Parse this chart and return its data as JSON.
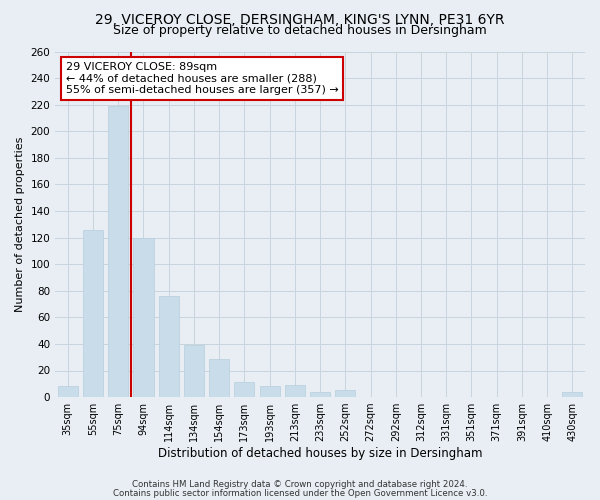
{
  "title1": "29, VICEROY CLOSE, DERSINGHAM, KING'S LYNN, PE31 6YR",
  "title2": "Size of property relative to detached houses in Dersingham",
  "xlabel": "Distribution of detached houses by size in Dersingham",
  "ylabel": "Number of detached properties",
  "categories": [
    "35sqm",
    "55sqm",
    "75sqm",
    "94sqm",
    "114sqm",
    "134sqm",
    "154sqm",
    "173sqm",
    "193sqm",
    "213sqm",
    "233sqm",
    "252sqm",
    "272sqm",
    "292sqm",
    "312sqm",
    "331sqm",
    "351sqm",
    "371sqm",
    "391sqm",
    "410sqm",
    "430sqm"
  ],
  "values": [
    8,
    126,
    219,
    120,
    76,
    39,
    29,
    11,
    8,
    9,
    4,
    5,
    0,
    0,
    0,
    0,
    0,
    0,
    0,
    0,
    4
  ],
  "bar_color": "#c9dcea",
  "bar_edge_color": "#b8cedd",
  "vline_color": "#cc0000",
  "vline_x": 2.5,
  "annotation_title": "29 VICEROY CLOSE: 89sqm",
  "annotation_line1": "← 44% of detached houses are smaller (288)",
  "annotation_line2": "55% of semi-detached houses are larger (357) →",
  "annotation_box_color": "#ffffff",
  "annotation_box_edge_color": "#cc0000",
  "ylim": [
    0,
    260
  ],
  "yticks": [
    0,
    20,
    40,
    60,
    80,
    100,
    120,
    140,
    160,
    180,
    200,
    220,
    240,
    260
  ],
  "footer1": "Contains HM Land Registry data © Crown copyright and database right 2024.",
  "footer2": "Contains public sector information licensed under the Open Government Licence v3.0.",
  "bg_color": "#e8eef4",
  "plot_bg_color": "#e8eef4",
  "grid_color": "#c8d4de",
  "title_fontsize": 10,
  "subtitle_fontsize": 9,
  "annotation_fontsize": 8
}
